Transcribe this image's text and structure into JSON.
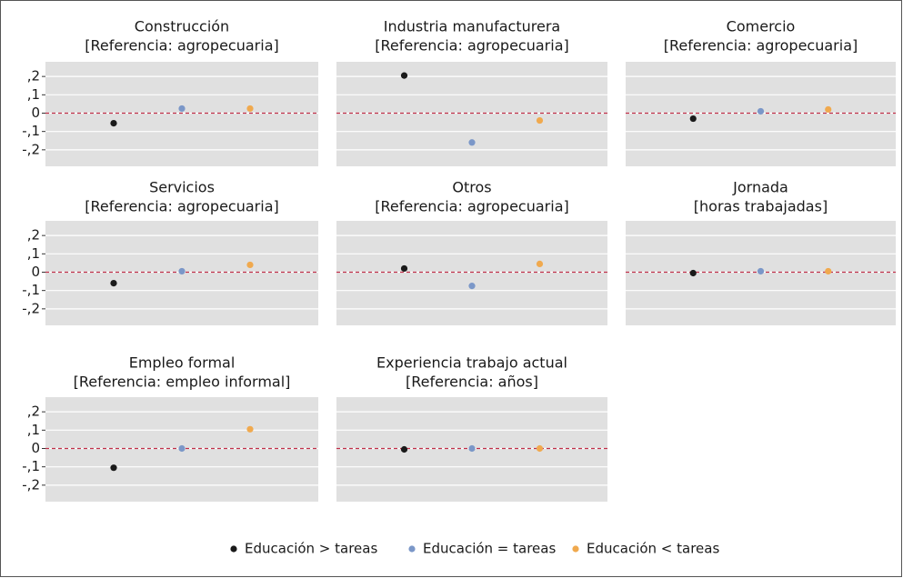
{
  "chart_data": [
    {
      "type": "dot",
      "title": "Construcción",
      "subtitle": "[Referencia: agropecuaria]",
      "series": [
        {
          "name": "Educación > tareas",
          "color": "#1a1a1a",
          "values": [
            -0.055
          ]
        },
        {
          "name": "Educación = tareas",
          "color": "#7b97c8",
          "values": [
            0.025
          ]
        },
        {
          "name": "Educación < tareas",
          "color": "#f0a94e",
          "values": [
            0.025
          ]
        }
      ],
      "ylim": [
        -0.29,
        0.28
      ],
      "yticks": [
        {
          "value": 0.2,
          "label": ",2"
        },
        {
          "value": 0.1,
          "label": ",1"
        },
        0,
        {
          "value": -0.1,
          "label": "-,1"
        },
        {
          "value": -0.2,
          "label": "-,2"
        }
      ],
      "reference_line": 0,
      "reference_color": "#c0304a",
      "grid": true
    },
    {
      "type": "dot",
      "title": "Industria manufacturera",
      "subtitle": "[Referencia: agropecuaria]",
      "series": [
        {
          "name": "Educación > tareas",
          "color": "#1a1a1a",
          "values": [
            0.205
          ]
        },
        {
          "name": "Educación = tareas",
          "color": "#7b97c8",
          "values": [
            -0.16
          ]
        },
        {
          "name": "Educación < tareas",
          "color": "#f0a94e",
          "values": [
            -0.04
          ]
        }
      ],
      "ylim": [
        -0.29,
        0.28
      ],
      "yticks": [
        {
          "value": 0.2,
          "label": ",2"
        },
        {
          "value": 0.1,
          "label": ",1"
        },
        0,
        {
          "value": -0.1,
          "label": "-,1"
        },
        {
          "value": -0.2,
          "label": "-,2"
        }
      ],
      "reference_line": 0,
      "reference_color": "#c0304a",
      "grid": true
    },
    {
      "type": "dot",
      "title": "Comercio",
      "subtitle": "[Referencia: agropecuaria]",
      "series": [
        {
          "name": "Educación > tareas",
          "color": "#1a1a1a",
          "values": [
            -0.03
          ]
        },
        {
          "name": "Educación = tareas",
          "color": "#7b97c8",
          "values": [
            0.01
          ]
        },
        {
          "name": "Educación < tareas",
          "color": "#f0a94e",
          "values": [
            0.02
          ]
        }
      ],
      "ylim": [
        -0.29,
        0.28
      ],
      "yticks": [
        {
          "value": 0.2,
          "label": ",2"
        },
        {
          "value": 0.1,
          "label": ",1"
        },
        0,
        {
          "value": -0.1,
          "label": "-,1"
        },
        {
          "value": -0.2,
          "label": "-,2"
        }
      ],
      "reference_line": 0,
      "reference_color": "#c0304a",
      "grid": true
    },
    {
      "type": "dot",
      "title": "Servicios",
      "subtitle": "[Referencia: agropecuaria]",
      "series": [
        {
          "name": "Educación > tareas",
          "color": "#1a1a1a",
          "values": [
            -0.06
          ]
        },
        {
          "name": "Educación = tareas",
          "color": "#7b97c8",
          "values": [
            0.005
          ]
        },
        {
          "name": "Educación < tareas",
          "color": "#f0a94e",
          "values": [
            0.04
          ]
        }
      ],
      "ylim": [
        -0.29,
        0.28
      ],
      "yticks": [
        {
          "value": 0.2,
          "label": ",2"
        },
        {
          "value": 0.1,
          "label": ",1"
        },
        0,
        {
          "value": -0.1,
          "label": "-,1"
        },
        {
          "value": -0.2,
          "label": "-,2"
        }
      ],
      "reference_line": 0,
      "reference_color": "#c0304a",
      "grid": true
    },
    {
      "type": "dot",
      "title": "Otros",
      "subtitle": "[Referencia: agropecuaria]",
      "series": [
        {
          "name": "Educación > tareas",
          "color": "#1a1a1a",
          "values": [
            0.02
          ]
        },
        {
          "name": "Educación = tareas",
          "color": "#7b97c8",
          "values": [
            -0.075
          ]
        },
        {
          "name": "Educación < tareas",
          "color": "#f0a94e",
          "values": [
            0.045
          ]
        }
      ],
      "ylim": [
        -0.29,
        0.28
      ],
      "yticks": [
        {
          "value": 0.2,
          "label": ",2"
        },
        {
          "value": 0.1,
          "label": ",1"
        },
        0,
        {
          "value": -0.1,
          "label": "-,1"
        },
        {
          "value": -0.2,
          "label": "-,2"
        }
      ],
      "reference_line": 0,
      "reference_color": "#c0304a",
      "grid": true
    },
    {
      "type": "dot",
      "title": "Jornada",
      "subtitle": "[horas trabajadas]",
      "series": [
        {
          "name": "Educación > tareas",
          "color": "#1a1a1a",
          "values": [
            -0.005
          ]
        },
        {
          "name": "Educación = tareas",
          "color": "#7b97c8",
          "values": [
            0.005
          ]
        },
        {
          "name": "Educación < tareas",
          "color": "#f0a94e",
          "values": [
            0.005
          ]
        }
      ],
      "ylim": [
        -0.29,
        0.28
      ],
      "yticks": [
        {
          "value": 0.2,
          "label": ",2"
        },
        {
          "value": 0.1,
          "label": ",1"
        },
        0,
        {
          "value": -0.1,
          "label": "-,1"
        },
        {
          "value": -0.2,
          "label": "-,2"
        }
      ],
      "reference_line": 0,
      "reference_color": "#c0304a",
      "grid": true
    },
    {
      "type": "dot",
      "title": "Empleo formal",
      "subtitle": "[Referencia: empleo informal]",
      "series": [
        {
          "name": "Educación > tareas",
          "color": "#1a1a1a",
          "values": [
            -0.105
          ]
        },
        {
          "name": "Educación = tareas",
          "color": "#7b97c8",
          "values": [
            0
          ]
        },
        {
          "name": "Educación < tareas",
          "color": "#f0a94e",
          "values": [
            0.105
          ]
        }
      ],
      "ylim": [
        -0.29,
        0.28
      ],
      "yticks": [
        {
          "value": 0.2,
          "label": ",2"
        },
        {
          "value": 0.1,
          "label": ",1"
        },
        0,
        {
          "value": -0.1,
          "label": "-,1"
        },
        {
          "value": -0.2,
          "label": "-,2"
        }
      ],
      "reference_line": 0,
      "reference_color": "#c0304a",
      "grid": true
    },
    {
      "type": "dot",
      "title": "Experiencia trabajo actual",
      "subtitle": "[Referencia: años]",
      "series": [
        {
          "name": "Educación > tareas",
          "color": "#1a1a1a",
          "values": [
            -0.005
          ]
        },
        {
          "name": "Educación = tareas",
          "color": "#7b97c8",
          "values": [
            0
          ]
        },
        {
          "name": "Educación < tareas",
          "color": "#f0a94e",
          "values": [
            0
          ]
        }
      ],
      "ylim": [
        -0.29,
        0.28
      ],
      "yticks": [
        {
          "value": 0.2,
          "label": ",2"
        },
        {
          "value": 0.1,
          "label": ",1"
        },
        0,
        {
          "value": -0.1,
          "label": "-,1"
        },
        {
          "value": -0.2,
          "label": "-,2"
        }
      ],
      "reference_line": 0,
      "reference_color": "#c0304a",
      "grid": true
    }
  ]
}
